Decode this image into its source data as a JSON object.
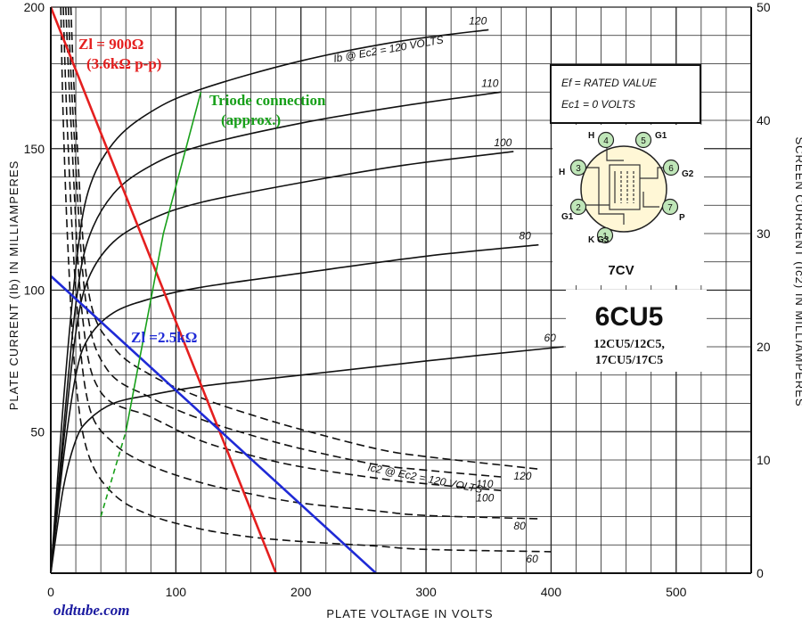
{
  "chart_data": {
    "type": "line",
    "title": "",
    "xlabel": "PLATE VOLTAGE IN VOLTS",
    "ylabel": "PLATE CURRENT (Ib) IN MILLIAMPERES",
    "y2label": "SCREEN CURRENT (Ic2) IN MILLIAMPERES",
    "xlim": [
      0,
      560
    ],
    "ylim": [
      0,
      200
    ],
    "y2lim": [
      0,
      50
    ],
    "grid": true,
    "x_ticks": [
      "0",
      "100",
      "200",
      "300",
      "400",
      "500"
    ],
    "y_ticks": [
      "50",
      "100",
      "150",
      "200"
    ],
    "y2_ticks": [
      "0",
      "10",
      "20",
      "30",
      "40",
      "50"
    ],
    "plate_series_label": "Ib @ Ec2 = 120 VOLTS",
    "screen_series_label": "Ic2 @ Ec2 = 120 VOLTS",
    "plate_curves": [
      {
        "label": "120",
        "x": [
          0,
          10,
          20,
          30,
          50,
          80,
          120,
          200,
          280,
          350
        ],
        "y": [
          0,
          60,
          108,
          135,
          152,
          163,
          171,
          181,
          188,
          192
        ]
      },
      {
        "label": "110",
        "x": [
          0,
          10,
          20,
          30,
          50,
          80,
          120,
          200,
          280,
          360
        ],
        "y": [
          0,
          50,
          95,
          118,
          134,
          144,
          151,
          159,
          165,
          170
        ]
      },
      {
        "label": "100",
        "x": [
          0,
          10,
          20,
          30,
          50,
          80,
          120,
          200,
          280,
          370
        ],
        "y": [
          0,
          45,
          85,
          104,
          117,
          125,
          131,
          138,
          144,
          149
        ]
      },
      {
        "label": "80",
        "x": [
          0,
          10,
          20,
          30,
          50,
          80,
          120,
          200,
          300,
          390
        ],
        "y": [
          0,
          40,
          70,
          83,
          92,
          97,
          101,
          106,
          112,
          116
        ]
      },
      {
        "label": "60",
        "x": [
          0,
          10,
          20,
          30,
          50,
          80,
          120,
          200,
          300,
          410
        ],
        "y": [
          0,
          30,
          47,
          54,
          60,
          63,
          66,
          70,
          75,
          80
        ]
      }
    ],
    "screen_curves": [
      {
        "label": "120",
        "x": [
          16,
          20,
          30,
          50,
          80,
          120,
          160,
          200,
          260,
          300,
          390
        ],
        "y": [
          50,
          40,
          25,
          20,
          17.5,
          15.5,
          14,
          12.7,
          11,
          10.3,
          9.2
        ]
      },
      {
        "label": "110",
        "x": [
          14,
          18,
          28,
          45,
          80,
          120,
          160,
          200,
          260,
          300,
          360
        ],
        "y": [
          50,
          40,
          24,
          18,
          15.5,
          13.6,
          12.2,
          11,
          9.6,
          9.1,
          8.5
        ]
      },
      {
        "label": "100",
        "x": [
          12,
          16,
          25,
          40,
          80,
          120,
          160,
          200,
          260,
          300,
          360
        ],
        "y": [
          50,
          40,
          23,
          16,
          13.8,
          11.7,
          10.4,
          9.4,
          8.4,
          7.9,
          7.3
        ]
      },
      {
        "label": "80",
        "x": [
          10,
          13,
          20,
          30,
          50,
          80,
          120,
          160,
          200,
          260,
          300,
          390
        ],
        "y": [
          50,
          40,
          25,
          15,
          11.5,
          9.5,
          8,
          7,
          6.2,
          5.5,
          5.1,
          4.8
        ]
      },
      {
        "label": "60",
        "x": [
          8,
          10,
          14,
          20,
          30,
          50,
          80,
          120,
          160,
          200,
          260,
          300,
          400
        ],
        "y": [
          50,
          40,
          28,
          17,
          10.5,
          7,
          5.1,
          3.9,
          3.2,
          2.8,
          2.4,
          2.1,
          1.9
        ]
      }
    ],
    "overlays": [
      {
        "name": "load-line-900",
        "color": "#e41f1f",
        "points": [
          [
            0,
            200
          ],
          [
            180,
            0
          ]
        ],
        "label_lines": [
          "Zl = 900Ω",
          "(3.6kΩ p-p)"
        ]
      },
      {
        "name": "load-line-2.5k",
        "color": "#1f2ad6",
        "points": [
          [
            0,
            105
          ],
          [
            260,
            0
          ]
        ],
        "label_lines": [
          "Zl =2.5kΩ"
        ]
      },
      {
        "name": "triode-connection",
        "color": "#18a01a",
        "points": [
          [
            40,
            20
          ],
          [
            60,
            50
          ],
          [
            90,
            120
          ],
          [
            120,
            170
          ]
        ],
        "label_lines": [
          "Triode connection",
          "(approx.)"
        ]
      }
    ],
    "info_box": [
      "Ef = RATED VALUE",
      "Ec1 = 0 VOLTS"
    ],
    "tube": {
      "base": "7CV",
      "name": "6CU5",
      "variants": [
        "12CU5/12C5,",
        "17CU5/17C5"
      ],
      "pins": [
        {
          "num": "1",
          "label": "K G3"
        },
        {
          "num": "2",
          "label": "G1"
        },
        {
          "num": "3",
          "label": "H"
        },
        {
          "num": "4",
          "label": "H"
        },
        {
          "num": "5",
          "label": "G1"
        },
        {
          "num": "6",
          "label": "G2"
        },
        {
          "num": "7",
          "label": "P"
        }
      ]
    },
    "watermark": "oldtube.com"
  }
}
